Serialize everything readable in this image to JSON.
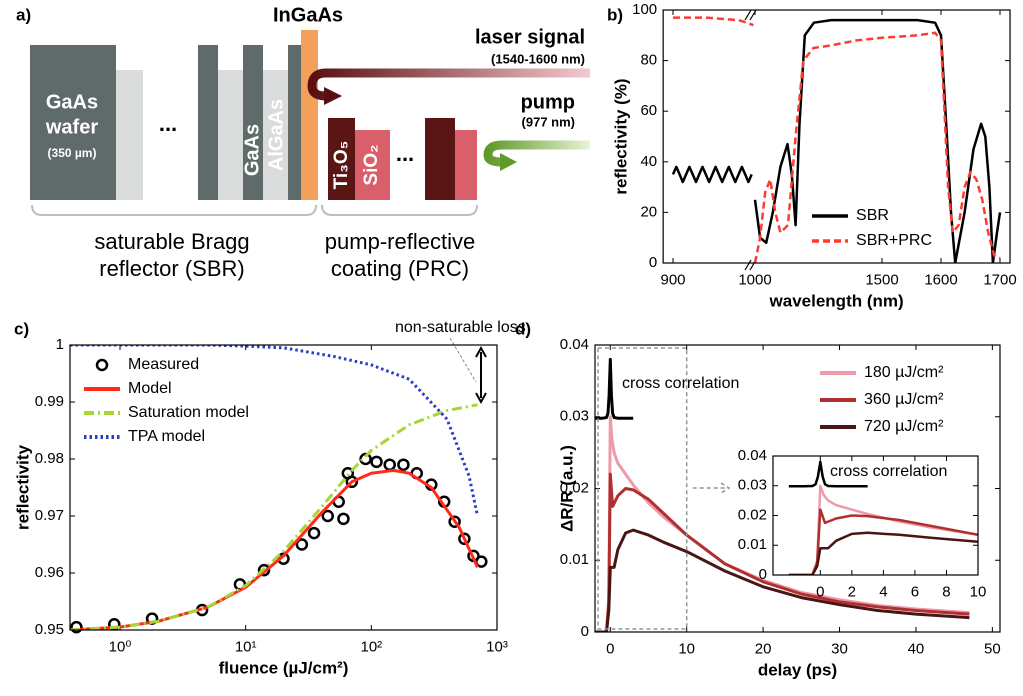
{
  "diagram": {
    "panel": "a)",
    "active_layer": "InGaAs",
    "signal": {
      "label": "laser signal",
      "range": "(1540-1600 nm)"
    },
    "pump": {
      "label": "pump",
      "range": "(977 nm)"
    },
    "wafer": {
      "material": "GaAs",
      "label": "wafer",
      "thickness": "(350 µm)"
    },
    "sbr_ellipsis": "...",
    "sbr_layers": [
      "GaAs",
      "AlGaAs"
    ],
    "prc_layers": [
      "Ti₃O₅",
      "SiO₂"
    ],
    "prc_ellipsis": "...",
    "sbr_caption": [
      "saturable Bragg",
      "reflector (SBR)"
    ],
    "prc_caption": [
      "pump-reflective",
      "coating (PRC)"
    ]
  },
  "chart_data": [
    {
      "type": "line",
      "panel": "b)",
      "xlabel": "wavelength (nm)",
      "ylabel": "reflectivity (%)",
      "xlim": [
        888,
        1717
      ],
      "xticks": [
        900,
        1000,
        1500,
        1600,
        1700
      ],
      "axis_break": true,
      "ylim": [
        0,
        100
      ],
      "yticks": [
        0,
        20,
        40,
        60,
        80,
        100
      ],
      "legend": "lower right",
      "series": [
        {
          "name": "SBR",
          "color": "#000000",
          "style": "solid",
          "x": [
            900,
            904,
            908,
            912,
            916,
            920,
            924,
            928,
            932,
            936,
            940,
            944,
            948,
            952,
            956,
            960,
            964,
            968,
            972,
            976,
            980,
            984,
            988,
            992,
            996,
            null,
            1000,
            1020,
            1044,
            1070,
            1100,
            1128,
            1145,
            1160,
            1175,
            1196,
            1232,
            1300,
            1400,
            1500,
            1560,
            1590,
            1600,
            1605,
            1610,
            1617,
            1624,
            1640,
            1655,
            1668,
            1675,
            1682,
            1688,
            1695,
            1700
          ],
          "values": [
            35,
            38,
            35,
            32,
            35,
            38,
            35,
            32,
            35,
            38,
            35,
            32,
            35,
            38,
            35,
            32,
            35,
            38,
            35,
            32,
            35,
            38,
            35,
            32,
            35,
            null,
            25,
            10,
            8,
            20,
            38,
            47,
            35,
            15,
            55,
            90,
            95,
            96,
            96,
            96,
            96,
            95,
            90,
            70,
            50,
            20,
            0,
            20,
            45,
            55,
            50,
            30,
            0,
            12,
            20
          ]
        },
        {
          "name": "SBR+PRC",
          "color": "#ff3b30",
          "style": "dashed",
          "x": [
            900,
            920,
            940,
            960,
            980,
            990,
            998,
            null,
            1000,
            1020,
            1040,
            1060,
            1080,
            1100,
            1130,
            1160,
            1190,
            1230,
            1300,
            1400,
            1500,
            1560,
            1590,
            1600,
            1606,
            1612,
            1620,
            1630,
            1640,
            1650,
            1660,
            1670,
            1680,
            1690,
            1700
          ],
          "values": [
            97,
            97,
            97,
            96.5,
            96,
            95,
            94,
            null,
            0,
            10,
            28,
            33,
            20,
            12,
            15,
            50,
            80,
            85,
            86,
            88,
            89,
            90,
            91,
            88,
            60,
            30,
            12,
            15,
            30,
            36,
            33,
            25,
            12,
            3,
            2
          ]
        }
      ]
    },
    {
      "type": "line",
      "panel": "c)",
      "xlabel": "fluence (µJ/cm²)",
      "ylabel": "reflectivity",
      "xscale": "log",
      "xlim": [
        0.4,
        1000
      ],
      "xticks": [
        {
          "value": 1,
          "label": "10⁰"
        },
        {
          "value": 10,
          "label": "10¹"
        },
        {
          "value": 100,
          "label": "10²"
        },
        {
          "value": 1000,
          "label": "10³"
        }
      ],
      "ylim": [
        0.95,
        1
      ],
      "yticks": [
        0.95,
        0.96,
        0.97,
        0.98,
        0.99,
        1
      ],
      "legend": "upper left",
      "annotation": "non-saturable loss",
      "series": [
        {
          "name": "Measured",
          "color": "#000000",
          "style": "none",
          "marker": "circle",
          "x": [
            0.45,
            0.9,
            1.8,
            4.5,
            9,
            14,
            20,
            28,
            35,
            45,
            55,
            60,
            65,
            70,
            90,
            110,
            140,
            180,
            230,
            300,
            380,
            460,
            550,
            650,
            750
          ],
          "values": [
            0.9505,
            0.951,
            0.952,
            0.9535,
            0.958,
            0.9605,
            0.9625,
            0.965,
            0.967,
            0.97,
            0.9725,
            0.9695,
            0.9775,
            0.976,
            0.98,
            0.9795,
            0.979,
            0.979,
            0.9775,
            0.9755,
            0.9725,
            0.969,
            0.966,
            0.963,
            0.962
          ]
        },
        {
          "name": "Model",
          "color": "#ff2a1a",
          "style": "solid",
          "x": [
            0.4,
            1,
            2,
            5,
            10,
            20,
            40,
            70,
            100,
            150,
            200,
            300,
            500,
            700
          ],
          "values": [
            0.95,
            0.9505,
            0.9515,
            0.954,
            0.9575,
            0.963,
            0.9705,
            0.976,
            0.9775,
            0.978,
            0.9775,
            0.975,
            0.968,
            0.961
          ]
        },
        {
          "name": "Saturation model",
          "color": "#a6d633",
          "style": "dash-dot",
          "x": [
            0.4,
            1,
            2,
            5,
            10,
            20,
            40,
            70,
            100,
            200,
            400,
            700
          ],
          "values": [
            0.95,
            0.9505,
            0.9515,
            0.954,
            0.9578,
            0.9638,
            0.9715,
            0.978,
            0.9815,
            0.986,
            0.9885,
            0.9895
          ]
        },
        {
          "name": "TPA model",
          "color": "#2a3cc4",
          "style": "dotted",
          "x": [
            0.4,
            1,
            5,
            10,
            20,
            50,
            100,
            200,
            400,
            600,
            700
          ],
          "values": [
            1,
            1,
            1,
            0.9998,
            0.9995,
            0.998,
            0.9965,
            0.994,
            0.987,
            0.977,
            0.97
          ]
        }
      ]
    },
    {
      "type": "line",
      "panel": "d)",
      "xlabel": "delay (ps)",
      "ylabel": "ΔR/R (a.u.)",
      "xlim": [
        -2,
        51
      ],
      "xticks": [
        0,
        10,
        20,
        30,
        40,
        50
      ],
      "ylim": [
        0,
        0.04
      ],
      "yticks": [
        0,
        0.01,
        0.02,
        0.03,
        0.04
      ],
      "legend": "upper right",
      "cross_correlation": {
        "label": "cross correlation",
        "color": "#000000",
        "x": [
          -2,
          -1,
          -0.5,
          -0.3,
          -0.15,
          0,
          0.15,
          0.3,
          0.5,
          1,
          2,
          3
        ],
        "values": [
          0.0298,
          0.0298,
          0.0299,
          0.0305,
          0.033,
          0.038,
          0.033,
          0.0305,
          0.0299,
          0.0298,
          0.0298,
          0.0298
        ]
      },
      "series": [
        {
          "name": "180 µJ/cm²",
          "color": "#ef9aa8",
          "style": "solid",
          "x": [
            -2,
            -0.5,
            -0.2,
            0,
            0.2,
            0.5,
            1,
            2,
            3,
            5,
            7,
            10,
            15,
            20,
            25,
            30,
            35,
            40,
            47
          ],
          "values": [
            0,
            0,
            0.005,
            0.03,
            0.027,
            0.025,
            0.0235,
            0.022,
            0.0205,
            0.018,
            0.016,
            0.0135,
            0.0095,
            0.0072,
            0.0055,
            0.0045,
            0.0037,
            0.0032,
            0.0027
          ]
        },
        {
          "name": "360 µJ/cm²",
          "color": "#b03030",
          "style": "solid",
          "x": [
            -2,
            -0.5,
            -0.2,
            0,
            0.3,
            1,
            2,
            3,
            5,
            7,
            10,
            15,
            20,
            25,
            30,
            35,
            40,
            47
          ],
          "values": [
            0,
            0,
            0.004,
            0.022,
            0.0175,
            0.019,
            0.02,
            0.0198,
            0.0185,
            0.0165,
            0.0135,
            0.0095,
            0.007,
            0.0053,
            0.0042,
            0.0035,
            0.003,
            0.0025
          ]
        },
        {
          "name": "720 µJ/cm²",
          "color": "#4a1515",
          "style": "solid",
          "x": [
            -2,
            -0.5,
            -0.2,
            0,
            0.5,
            1,
            2,
            3,
            5,
            7,
            10,
            15,
            20,
            25,
            30,
            35,
            40,
            47
          ],
          "values": [
            0,
            0,
            0.003,
            0.009,
            0.009,
            0.0115,
            0.0138,
            0.0142,
            0.0135,
            0.0125,
            0.0112,
            0.0085,
            0.0063,
            0.0048,
            0.0038,
            0.003,
            0.0025,
            0.002
          ]
        }
      ]
    },
    {
      "type": "inset",
      "annotation": "cross correlation",
      "xlim": [
        -3,
        10
      ],
      "xticks": [
        0,
        2,
        4,
        6,
        8,
        10
      ],
      "ylim": [
        0,
        0.04
      ],
      "yticks": [
        0,
        0.01,
        0.02,
        0.03,
        0.04
      ]
    }
  ]
}
